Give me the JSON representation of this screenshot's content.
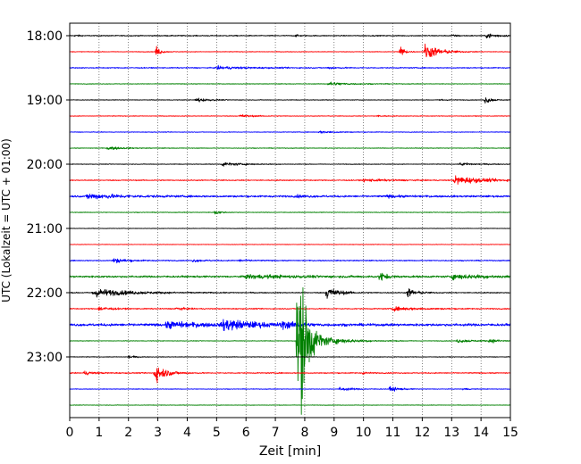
{
  "chart_data": {
    "type": "line",
    "title": "",
    "xlabel": "Zeit  [min]",
    "ylabel": "UTC (Lokalzeit = UTC + 01:00)",
    "xlim": [
      0,
      15
    ],
    "x_ticks": [
      "0",
      "1",
      "2",
      "3",
      "4",
      "5",
      "6",
      "7",
      "8",
      "9",
      "10",
      "11",
      "12",
      "13",
      "14",
      "15"
    ],
    "y_ticks": [
      "18:00",
      "19:00",
      "20:00",
      "21:00",
      "22:00",
      "23:00"
    ],
    "grid": "vertical dotted lines at each minute",
    "line_interval_minutes": 15,
    "colors_cycle": [
      "#000000",
      "#ff0000",
      "#0000ff",
      "#008000"
    ],
    "traces": [
      {
        "time": "18:00",
        "color": "#000000",
        "noise": 0.8,
        "events": [
          {
            "x": 0.2,
            "amp": 1.5,
            "dur": 0.3
          },
          {
            "x": 7.7,
            "amp": 1.5,
            "dur": 0.3
          },
          {
            "x": 13.0,
            "amp": 1.5,
            "dur": 0.5
          },
          {
            "x": 14.2,
            "amp": 4,
            "dur": 0.9
          }
        ]
      },
      {
        "time": "18:15",
        "color": "#ff0000",
        "noise": 0.5,
        "events": [
          {
            "x": 2.95,
            "amp": 9,
            "dur": 0.3
          },
          {
            "x": 11.25,
            "amp": 11,
            "dur": 0.3
          },
          {
            "x": 12.1,
            "amp": 14,
            "dur": 1.0
          }
        ]
      },
      {
        "time": "18:30",
        "color": "#0000ff",
        "noise": 0.8,
        "events": [
          {
            "x": 5.0,
            "amp": 2.2,
            "dur": 2.5
          },
          {
            "x": 8.8,
            "amp": 1.5,
            "dur": 0.8
          }
        ]
      },
      {
        "time": "18:45",
        "color": "#008000",
        "noise": 0.5,
        "events": [
          {
            "x": 8.8,
            "amp": 3,
            "dur": 1.5
          }
        ]
      },
      {
        "time": "19:00",
        "color": "#000000",
        "noise": 0.5,
        "events": [
          {
            "x": 4.3,
            "amp": 4,
            "dur": 0.8
          },
          {
            "x": 12.6,
            "amp": 1.5,
            "dur": 0.5
          },
          {
            "x": 14.15,
            "amp": 7,
            "dur": 0.4
          }
        ]
      },
      {
        "time": "19:15",
        "color": "#ff0000",
        "noise": 0.5,
        "events": [
          {
            "x": 5.8,
            "amp": 2.5,
            "dur": 0.9
          },
          {
            "x": 10.5,
            "amp": 1.5,
            "dur": 0.5
          }
        ]
      },
      {
        "time": "19:30",
        "color": "#0000ff",
        "noise": 0.5,
        "events": [
          {
            "x": 8.5,
            "amp": 2,
            "dur": 1.2
          }
        ]
      },
      {
        "time": "19:45",
        "color": "#008000",
        "noise": 0.5,
        "events": [
          {
            "x": 1.3,
            "amp": 3,
            "dur": 1.0
          }
        ]
      },
      {
        "time": "20:00",
        "color": "#000000",
        "noise": 0.5,
        "events": [
          {
            "x": 5.2,
            "amp": 3,
            "dur": 1.5
          },
          {
            "x": 13.3,
            "amp": 2.5,
            "dur": 1.2
          }
        ]
      },
      {
        "time": "20:15",
        "color": "#ff0000",
        "noise": 0.8,
        "events": [
          {
            "x": 10.0,
            "amp": 2,
            "dur": 2.0
          },
          {
            "x": 13.1,
            "amp": 7,
            "dur": 2.0
          }
        ]
      },
      {
        "time": "20:30",
        "color": "#0000ff",
        "noise": 1.5,
        "events": [
          {
            "x": 0.6,
            "amp": 4.5,
            "dur": 2.2
          },
          {
            "x": 7.7,
            "amp": 1.5,
            "dur": 1.0
          },
          {
            "x": 10.8,
            "amp": 1.5,
            "dur": 1.0
          }
        ]
      },
      {
        "time": "20:45",
        "color": "#008000",
        "noise": 0.5,
        "events": [
          {
            "x": 4.95,
            "amp": 4,
            "dur": 0.4
          }
        ]
      },
      {
        "time": "21:00",
        "color": "#000000",
        "noise": 0.4,
        "events": []
      },
      {
        "time": "21:15",
        "color": "#ff0000",
        "noise": 0.4,
        "events": []
      },
      {
        "time": "21:30",
        "color": "#0000ff",
        "noise": 0.8,
        "events": [
          {
            "x": 1.5,
            "amp": 4,
            "dur": 1.0
          },
          {
            "x": 4.2,
            "amp": 2,
            "dur": 0.8
          },
          {
            "x": 5.8,
            "amp": 2,
            "dur": 0.7
          }
        ]
      },
      {
        "time": "21:45",
        "color": "#008000",
        "noise": 1.5,
        "events": [
          {
            "x": 6.0,
            "amp": 3,
            "dur": 3.5
          },
          {
            "x": 10.55,
            "amp": 9,
            "dur": 0.4
          },
          {
            "x": 13.0,
            "amp": 3.5,
            "dur": 3.0
          }
        ]
      },
      {
        "time": "22:00",
        "color": "#000000",
        "noise": 0.8,
        "events": [
          {
            "x": 0.8,
            "amp": 7,
            "dur": 2.5
          },
          {
            "x": 8.75,
            "amp": 11,
            "dur": 0.8
          },
          {
            "x": 11.5,
            "amp": 8,
            "dur": 0.6
          }
        ]
      },
      {
        "time": "22:15",
        "color": "#ff0000",
        "noise": 0.8,
        "events": [
          {
            "x": 1.0,
            "amp": 4,
            "dur": 0.8
          },
          {
            "x": 3.6,
            "amp": 3,
            "dur": 0.6
          },
          {
            "x": 11.0,
            "amp": 3,
            "dur": 2.0
          }
        ]
      },
      {
        "time": "22:30",
        "color": "#0000ff",
        "noise": 2.0,
        "events": [
          {
            "x": 3.3,
            "amp": 5,
            "dur": 2.5
          },
          {
            "x": 5.2,
            "amp": 9,
            "dur": 2.2
          },
          {
            "x": 7.2,
            "amp": 5,
            "dur": 1.0
          }
        ]
      },
      {
        "time": "22:45",
        "color": "#008000",
        "noise": 0.5,
        "events": [
          {
            "x": 7.75,
            "amp": 110,
            "dur": 0.4
          },
          {
            "x": 7.9,
            "amp": 85,
            "dur": 0.4
          },
          {
            "x": 8.1,
            "amp": 14,
            "dur": 1.8
          },
          {
            "x": 13.2,
            "amp": 3,
            "dur": 1.2
          },
          {
            "x": 14.3,
            "amp": 3,
            "dur": 0.8
          }
        ]
      },
      {
        "time": "23:00",
        "color": "#000000",
        "noise": 0.5,
        "events": [
          {
            "x": 2.0,
            "amp": 3,
            "dur": 0.4
          }
        ]
      },
      {
        "time": "23:15",
        "color": "#ff0000",
        "noise": 0.8,
        "events": [
          {
            "x": 0.5,
            "amp": 3,
            "dur": 0.8
          },
          {
            "x": 2.9,
            "amp": 15,
            "dur": 0.8
          },
          {
            "x": 10.0,
            "amp": 2,
            "dur": 0.4
          }
        ]
      },
      {
        "time": "23:30",
        "color": "#0000ff",
        "noise": 0.5,
        "events": [
          {
            "x": 9.2,
            "amp": 3,
            "dur": 1.0
          },
          {
            "x": 10.9,
            "amp": 4,
            "dur": 0.7
          },
          {
            "x": 13.4,
            "amp": 2,
            "dur": 0.4
          }
        ]
      },
      {
        "time": "23:45",
        "color": "#008000",
        "noise": 0.4,
        "events": []
      }
    ]
  }
}
